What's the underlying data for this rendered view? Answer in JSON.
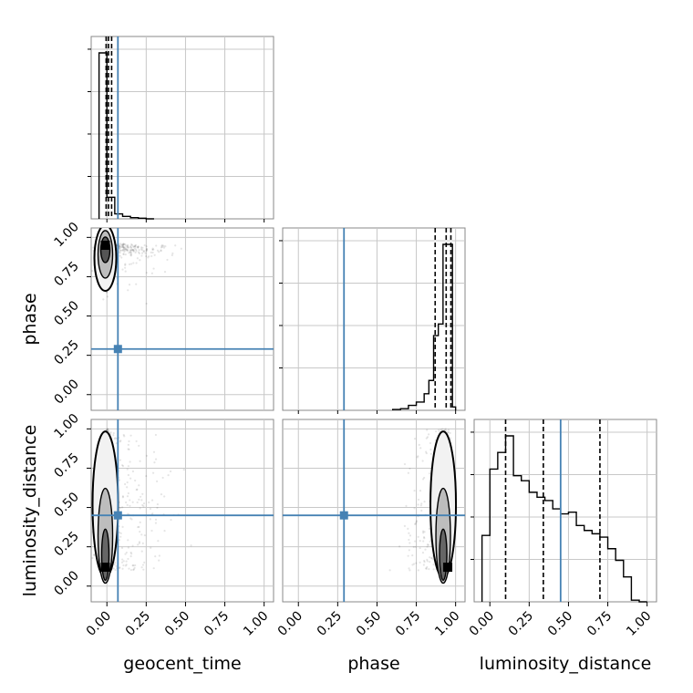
{
  "chart_data": {
    "type": "corner",
    "parameters": [
      "geocent_time",
      "phase",
      "luminosity_distance"
    ],
    "axis_labels": {
      "geocent_time": "geocent_time",
      "phase": "phase",
      "luminosity_distance": "luminosity_distance"
    },
    "ticks": [
      0.0,
      0.25,
      0.5,
      0.75,
      1.0
    ],
    "tick_labels": [
      "0.00",
      "0.25",
      "0.50",
      "0.75",
      "1.00"
    ],
    "range": [
      -0.1,
      1.06
    ],
    "truth": {
      "geocent_time": 0.07,
      "phase": 0.29,
      "luminosity_distance": 0.45
    },
    "truth_color": "#4682b4",
    "grid": true,
    "histograms": {
      "geocent_time": {
        "edges": [
          -0.05,
          0.0,
          0.05,
          0.1,
          0.15,
          0.2,
          0.25,
          0.3
        ],
        "counts": [
          1.0,
          0.13,
          0.03,
          0.015,
          0.007,
          0.004,
          0.0
        ],
        "quantiles": [
          -0.005,
          0.01,
          0.03
        ]
      },
      "phase": {
        "edges": [
          0.6,
          0.65,
          0.7,
          0.75,
          0.8,
          0.83,
          0.86,
          0.89,
          0.92,
          0.95,
          0.98,
          1.0
        ],
        "counts": [
          0.005,
          0.01,
          0.03,
          0.05,
          0.1,
          0.18,
          0.45,
          0.52,
          1.0,
          1.0,
          0.02
        ],
        "quantiles": [
          0.87,
          0.94,
          0.97
        ]
      },
      "luminosity_distance": {
        "edges": [
          -0.05,
          0.0,
          0.05,
          0.1,
          0.15,
          0.2,
          0.25,
          0.3,
          0.35,
          0.4,
          0.45,
          0.5,
          0.55,
          0.6,
          0.65,
          0.7,
          0.75,
          0.8,
          0.85,
          0.9,
          0.95,
          1.0
        ],
        "counts": [
          0.4,
          0.8,
          0.9,
          1.0,
          0.76,
          0.73,
          0.66,
          0.63,
          0.61,
          0.56,
          0.53,
          0.54,
          0.46,
          0.43,
          0.41,
          0.39,
          0.32,
          0.25,
          0.15,
          0.01,
          0.0
        ],
        "quantiles": [
          0.1,
          0.34,
          0.7
        ]
      }
    },
    "densities": [
      {
        "x": "geocent_time",
        "y": "phase",
        "mode": [
          -0.01,
          0.95
        ]
      },
      {
        "x": "geocent_time",
        "y": "luminosity_distance",
        "mode": [
          -0.01,
          0.12
        ]
      },
      {
        "x": "phase",
        "y": "luminosity_distance",
        "mode": [
          0.95,
          0.12
        ]
      }
    ]
  }
}
